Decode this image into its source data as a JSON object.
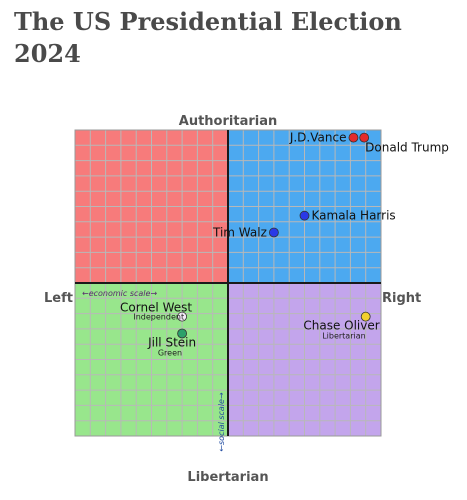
{
  "page": {
    "title": "The US Presidential Election 2024"
  },
  "colors": {
    "authoritarian_left": "#f77b7b",
    "authoritarian_right": "#4ca9f0",
    "libertarian_left": "#98e68c",
    "libertarian_right": "#c3a5ec",
    "grid_line": "#b8b8b8",
    "axis_line": "#1a1a1a"
  },
  "chart_data": {
    "type": "scatter",
    "title": "",
    "xlim": [
      -10,
      10
    ],
    "ylim": [
      -10,
      10
    ],
    "grid": true,
    "grid_step": 1,
    "axis_labels": {
      "top": "Authoritarian",
      "bottom": "Libertarian",
      "left": "Left",
      "right": "Right"
    },
    "scale_labels": {
      "economic": "←economic scale→",
      "social": "←social scale→"
    },
    "points": [
      {
        "name": "J.D.Vance",
        "x": 8.2,
        "y": 9.5,
        "color": "#e32b2b",
        "label_side": "left",
        "party": ""
      },
      {
        "name": "Donald Trump",
        "x": 8.9,
        "y": 9.5,
        "color": "#e32b2b",
        "label_side": "below-right",
        "party": ""
      },
      {
        "name": "Kamala Harris",
        "x": 5.0,
        "y": 4.4,
        "color": "#2a39e6",
        "label_side": "right",
        "party": ""
      },
      {
        "name": "Tim Walz",
        "x": 3.0,
        "y": 3.3,
        "color": "#2a39e6",
        "label_side": "left",
        "party": ""
      },
      {
        "name": "Cornel West",
        "x": -3.0,
        "y": -2.2,
        "color": "#f3e9f7",
        "label_side": "above-left",
        "party": "Independent"
      },
      {
        "name": "Jill Stein",
        "x": -3.0,
        "y": -3.3,
        "color": "#2ca06a",
        "label_side": "below-left",
        "party": "Green"
      },
      {
        "name": "Chase Oliver",
        "x": 9.0,
        "y": -2.2,
        "color": "#f2d02e",
        "label_side": "below-left",
        "party": "Libertarian"
      }
    ]
  }
}
